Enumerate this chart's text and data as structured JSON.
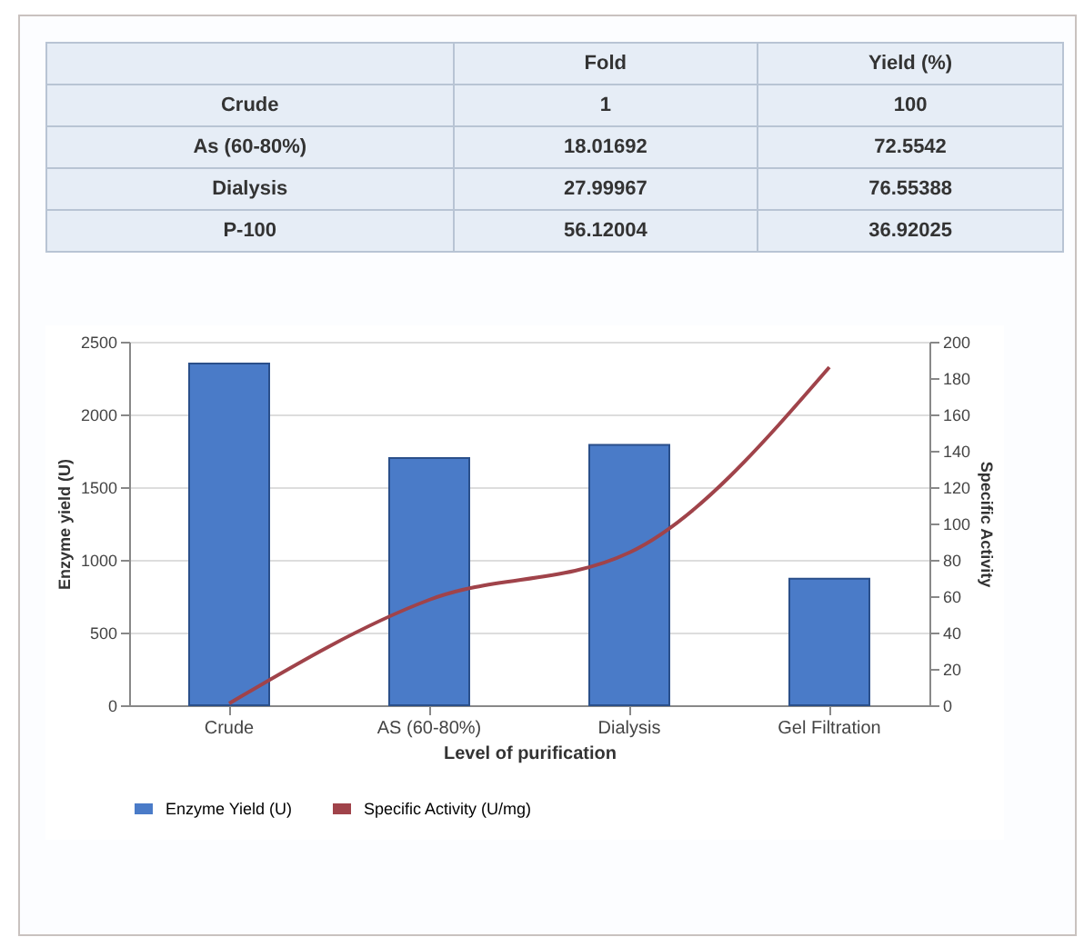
{
  "chart_data": [
    {
      "type": "other",
      "annotations": [
        "Fold",
        "Yield (%)",
        "Crude",
        "1",
        "100",
        "As (60-80%)",
        "18.01692",
        "72.5542",
        "Dialysis",
        "27.99967",
        "76.55388",
        "P-100",
        "56.12004",
        "36.92025"
      ]
    },
    {
      "type": "bar",
      "xlabel": "Level of purification",
      "ylabel": "Enzyme yield (U)",
      "y2label": "Specific Activity",
      "categories": [
        "Crude",
        "AS (60-80%)",
        "Dialysis",
        "Gel Filtration"
      ],
      "series": [
        {
          "name": "Enzyme Yield (U)",
          "type": "bar",
          "color": "#4a7bc8",
          "values": [
            2350,
            1700,
            1790,
            870
          ]
        },
        {
          "name": "Specific Activity (U/mg)",
          "type": "line",
          "axis": "y2",
          "color": "#a0434a",
          "values": [
            1,
            58,
            84,
            186
          ]
        }
      ],
      "ylim": [
        0,
        2500
      ],
      "yticks": [
        0,
        500,
        1000,
        1500,
        2000,
        2500
      ],
      "y2lim": [
        0,
        200
      ],
      "y2ticks": [
        0,
        20,
        40,
        60,
        80,
        100,
        120,
        140,
        160,
        180,
        200
      ],
      "grid": "y",
      "legend": "bottom",
      "marker": "none",
      "line_style": "solid"
    }
  ]
}
